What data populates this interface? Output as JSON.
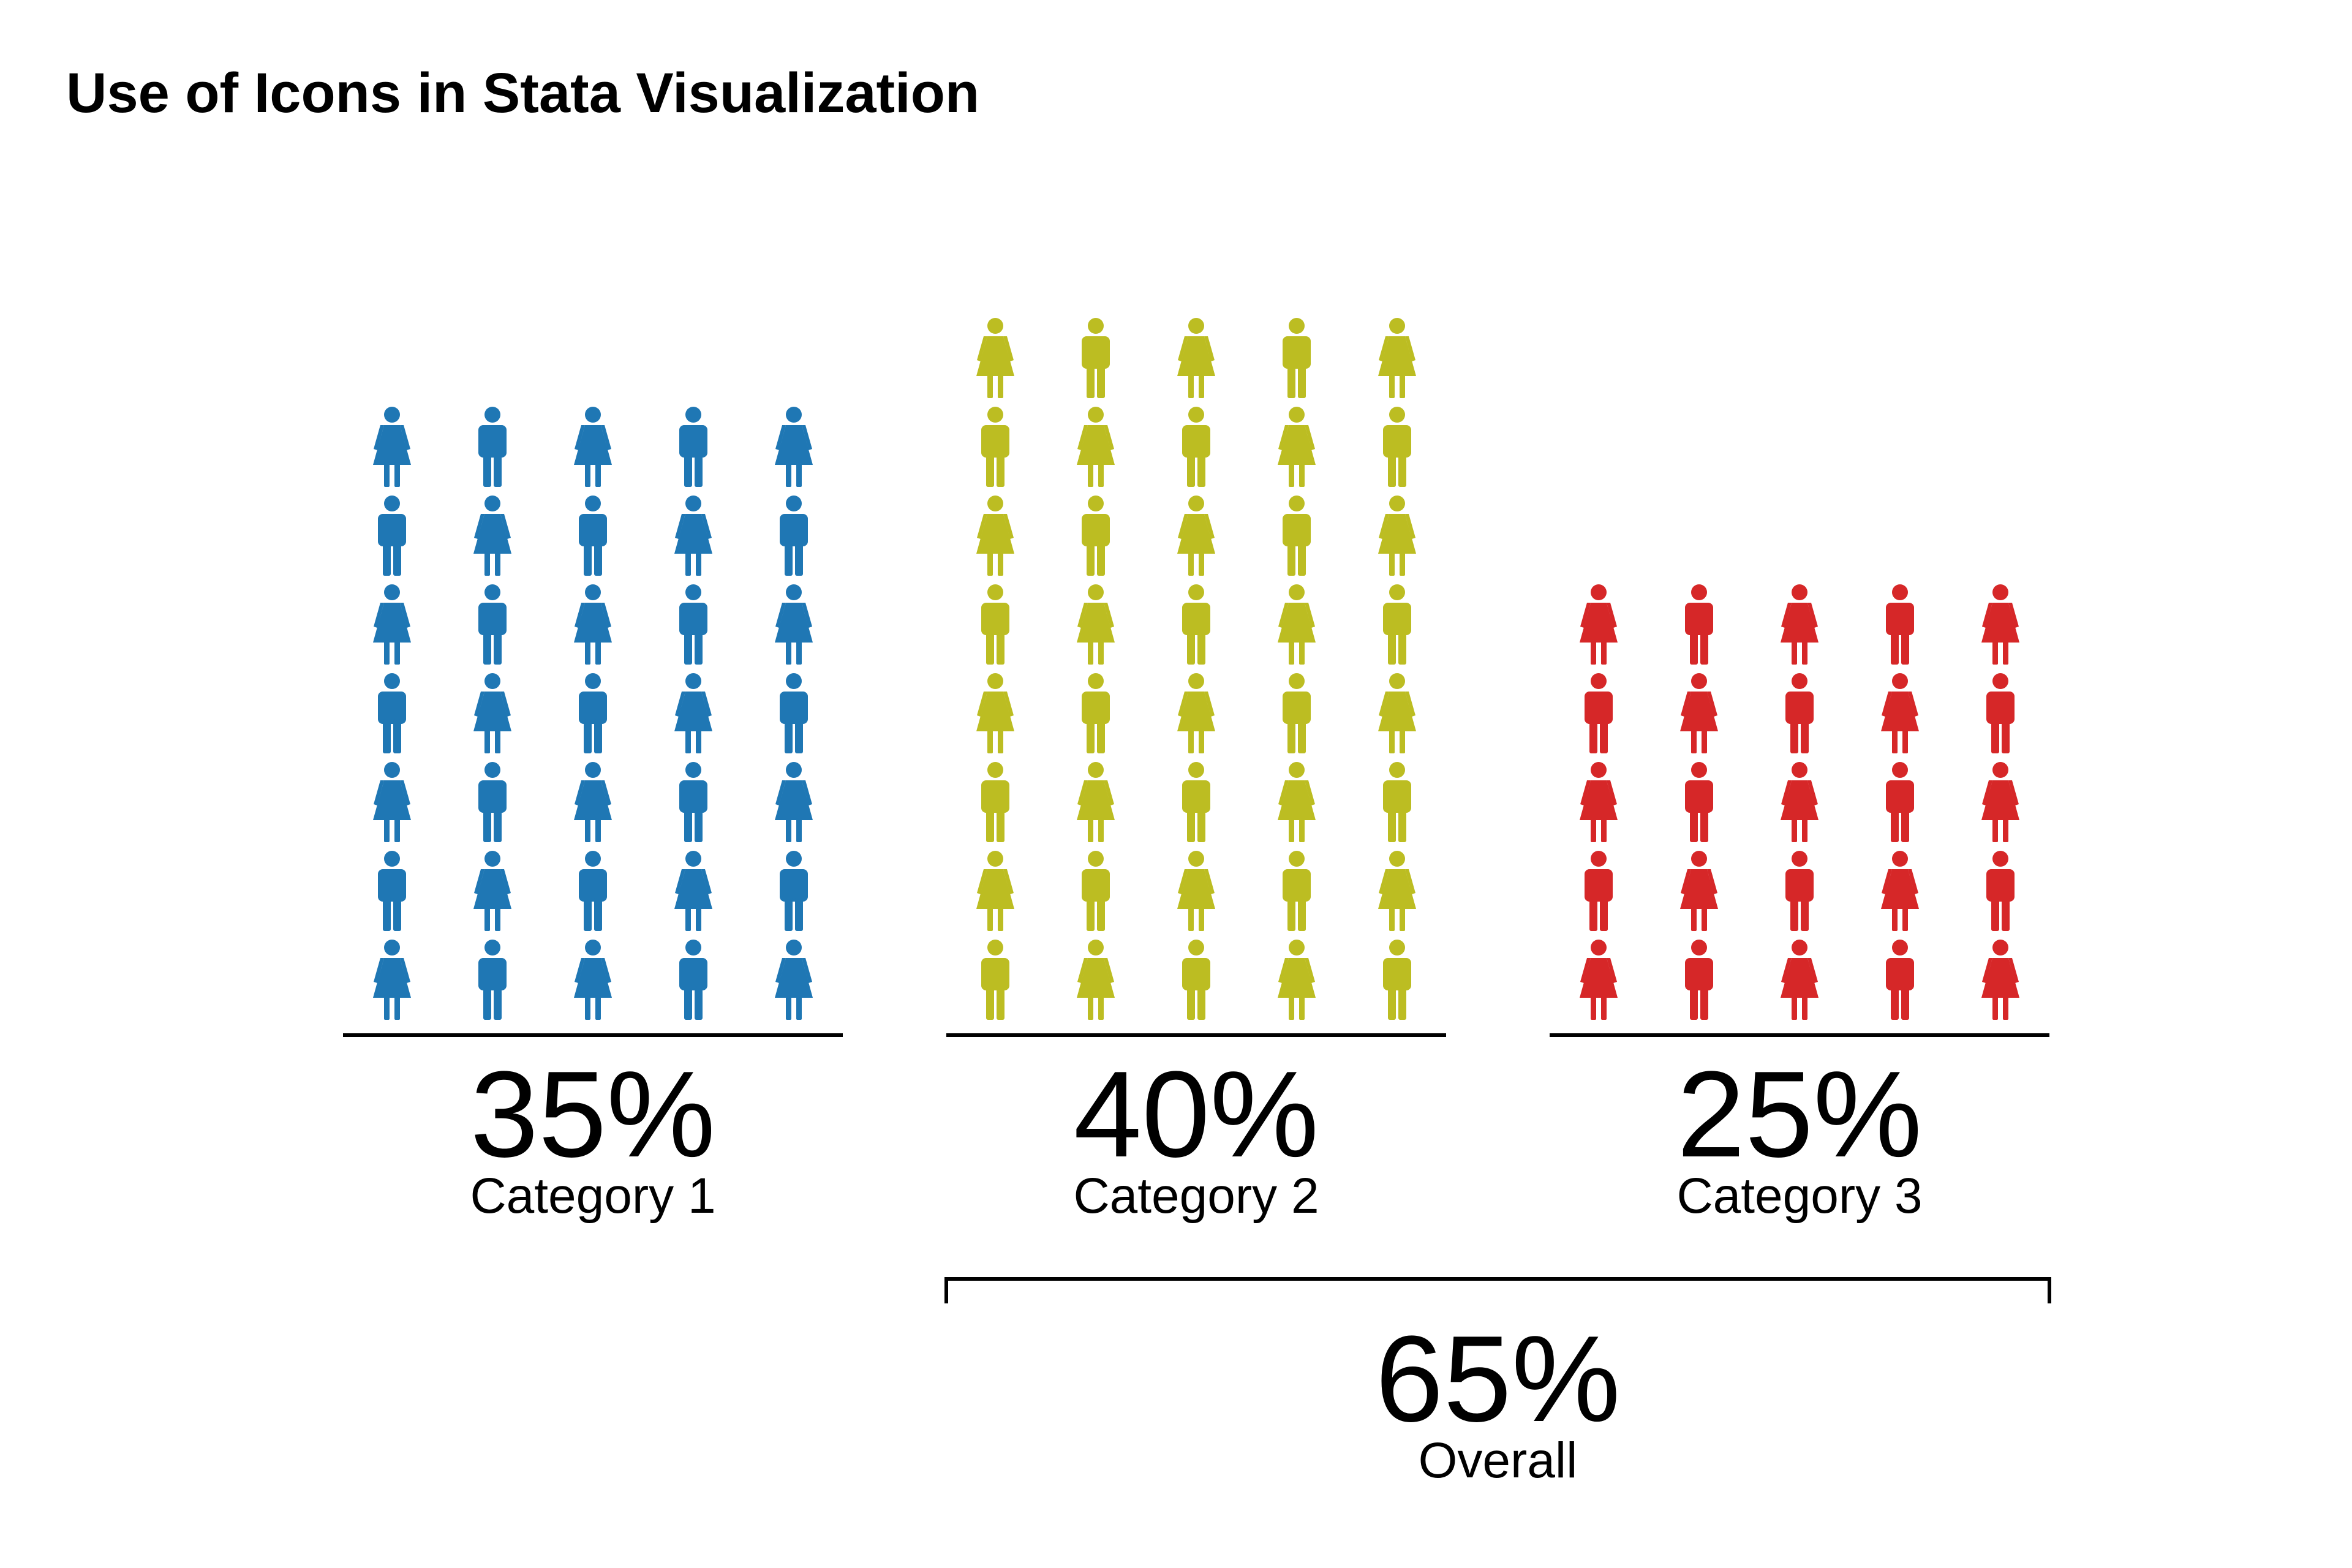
{
  "chart_data": {
    "type": "pictograph",
    "title": "Use of Icons in Stata Visualization",
    "icon_names": [
      "male-person-icon",
      "female-person-icon"
    ],
    "grid": false,
    "groups": [
      {
        "label": "Category 1",
        "percent_label": "35%",
        "value": 35,
        "icons": 35,
        "color": "#1f77b4"
      },
      {
        "label": "Category 2",
        "percent_label": "40%",
        "value": 40,
        "icons": 40,
        "color": "#bcbd22"
      },
      {
        "label": "Category 3",
        "percent_label": "25%",
        "value": 25,
        "icons": 25,
        "color": "#d62728"
      }
    ],
    "overall": {
      "label": "Overall",
      "percent_label": "65%",
      "value": 65,
      "spans": [
        "Category 2",
        "Category 3"
      ]
    }
  }
}
